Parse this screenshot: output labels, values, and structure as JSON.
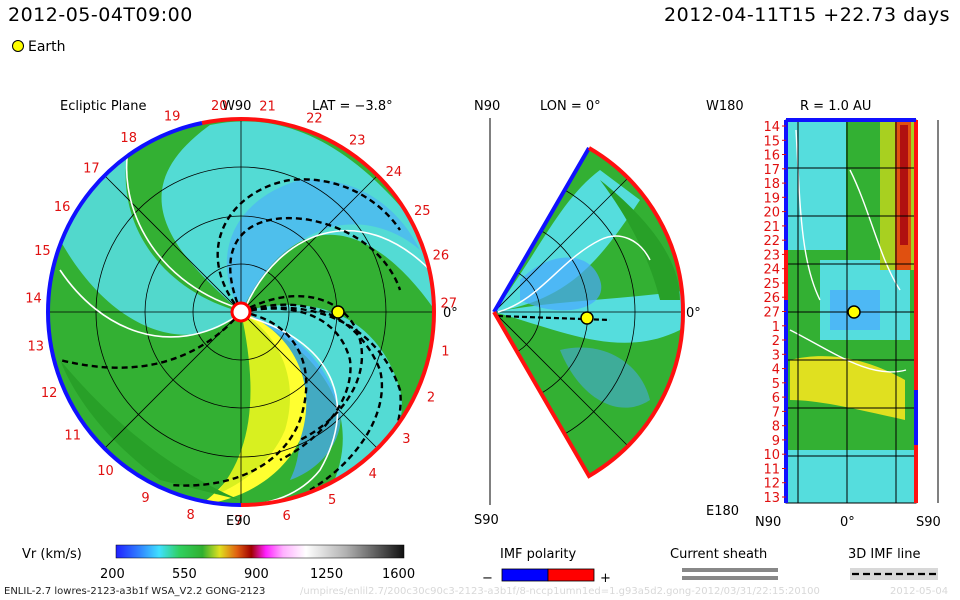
{
  "header": {
    "valid_time": "2012-05-04T09:00",
    "run_info": "2012-04-11T15 +22.73 days",
    "earth_legend": "Earth"
  },
  "colors": {
    "imf_negative": "#0000ff",
    "imf_positive": "#ff0000",
    "earth": "#ffff00",
    "sheath": "#888888",
    "imf_line": "#000000"
  },
  "panels": {
    "ecliptic": {
      "title": "Ecliptic Plane",
      "top_label": "W90",
      "bottom_label": "E90",
      "right_label": "0°",
      "lat_label": "LAT = −3.8°",
      "rotation_labels": [
        "20",
        "21",
        "22",
        "23",
        "24",
        "25",
        "26",
        "27",
        "1",
        "2",
        "3",
        "4",
        "5",
        "6",
        "7",
        "8",
        "9",
        "10",
        "11",
        "12",
        "13",
        "14",
        "15",
        "16",
        "17",
        "18",
        "19"
      ]
    },
    "meridional": {
      "top_left": "N90",
      "lon_label": "LON = 0°",
      "right_label": "0°",
      "bottom_label": "S90"
    },
    "radial": {
      "top_left": "W180",
      "r_label": "R = 1.0 AU",
      "bottom_left": "E180",
      "x_labels": [
        "N90",
        "0°",
        "S90"
      ],
      "y_labels": [
        "14",
        "15",
        "16",
        "17",
        "18",
        "19",
        "20",
        "21",
        "22",
        "23",
        "24",
        "25",
        "26",
        "27",
        "1",
        "2",
        "3",
        "4",
        "5",
        "6",
        "7",
        "8",
        "9",
        "10",
        "11",
        "12",
        "13"
      ]
    }
  },
  "legends": {
    "vr_title": "Vr (km/s)",
    "vr_ticks": [
      "200",
      "550",
      "900",
      "1250",
      "1600"
    ],
    "imf_title": "IMF polarity",
    "imf_minus": "−",
    "imf_plus": "+",
    "sheath_title": "Current sheath",
    "imf_line_title": "3D IMF line"
  },
  "footer": {
    "model_info": "ENLIL-2.7 lowres-2123-a3b1f WSA_V2.2 GONG-2123",
    "faint_path": "/umpires/enlil2.7/200c30c90c3-2123-a3b1f/8-nccp1umn1ed=1.g93a5d2.gong-2012/03/31/22:15:20100",
    "faint_date": "2012-05-04"
  },
  "chart_data": {
    "type": "heatmap",
    "title": "",
    "quantity": "Vr (km/s)",
    "colorbar_range": [
      200,
      1600
    ],
    "colorbar_ticks": [
      200,
      550,
      900,
      1250,
      1600
    ],
    "earth_position": {
      "lat_deg": -3.8,
      "lon_deg": 0,
      "r_au": 1.0
    },
    "panels": [
      "Ecliptic Plane",
      "LON = 0°",
      "R = 1.0 AU"
    ]
  }
}
